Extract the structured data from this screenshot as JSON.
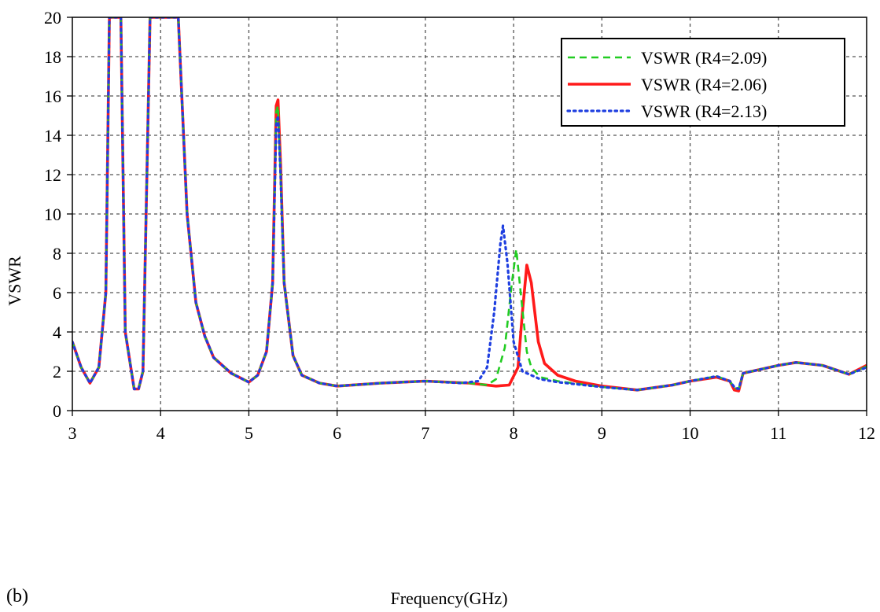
{
  "chart_data": {
    "type": "line",
    "title": "",
    "panel_label": "(b)",
    "xlabel": "Frequency(GHz)",
    "ylabel": "VSWR",
    "xlim": [
      3,
      12
    ],
    "ylim": [
      0,
      20
    ],
    "xticks": [
      3,
      4,
      5,
      6,
      7,
      8,
      9,
      10,
      11,
      12
    ],
    "yticks": [
      0,
      2,
      4,
      6,
      8,
      10,
      12,
      14,
      16,
      18,
      20
    ],
    "grid": true,
    "legend_position": "top-right",
    "series": [
      {
        "name": "VSWR (R4=2.09)",
        "color": "#22cc22",
        "style": "dashed",
        "x": [
          3.0,
          3.1,
          3.2,
          3.3,
          3.38,
          3.42,
          3.45,
          3.5,
          3.55,
          3.6,
          3.7,
          3.75,
          3.8,
          3.88,
          3.92,
          3.95,
          4.0,
          4.1,
          4.2,
          4.3,
          4.4,
          4.5,
          4.6,
          4.8,
          5.0,
          5.1,
          5.2,
          5.27,
          5.31,
          5.33,
          5.36,
          5.4,
          5.5,
          5.6,
          5.8,
          6.0,
          6.5,
          7.0,
          7.5,
          7.7,
          7.8,
          7.9,
          7.98,
          8.03,
          8.08,
          8.15,
          8.2,
          8.3,
          8.5,
          9.0,
          9.4,
          9.8,
          10.0,
          10.3,
          10.45,
          10.5,
          10.55,
          10.6,
          10.7,
          11.0,
          11.2,
          11.5,
          11.8,
          12.0
        ],
        "y": [
          3.5,
          2.2,
          1.4,
          2.2,
          6,
          20,
          20,
          20,
          20,
          4,
          1.1,
          1.1,
          2,
          20,
          20,
          20,
          20,
          20,
          20,
          10,
          5.5,
          3.8,
          2.7,
          1.9,
          1.45,
          1.8,
          3.0,
          6.5,
          15.2,
          15.5,
          12,
          6.5,
          2.8,
          1.8,
          1.4,
          1.25,
          1.4,
          1.5,
          1.4,
          1.3,
          1.6,
          3.2,
          6.5,
          8.2,
          6.0,
          3.0,
          2.2,
          1.7,
          1.5,
          1.2,
          1.05,
          1.3,
          1.5,
          1.75,
          1.5,
          1.15,
          1.1,
          1.9,
          2.0,
          2.3,
          2.45,
          2.3,
          1.85,
          2.25
        ]
      },
      {
        "name": "VSWR (R4=2.06)",
        "color": "#ff1a1a",
        "style": "solid",
        "x": [
          3.0,
          3.1,
          3.2,
          3.3,
          3.38,
          3.42,
          3.45,
          3.5,
          3.55,
          3.6,
          3.7,
          3.75,
          3.8,
          3.88,
          3.92,
          3.95,
          4.0,
          4.1,
          4.2,
          4.3,
          4.4,
          4.5,
          4.6,
          4.8,
          5.0,
          5.1,
          5.2,
          5.27,
          5.31,
          5.33,
          5.36,
          5.4,
          5.5,
          5.6,
          5.8,
          6.0,
          6.5,
          7.0,
          7.5,
          7.8,
          7.95,
          8.05,
          8.1,
          8.15,
          8.2,
          8.28,
          8.35,
          8.5,
          8.7,
          9.0,
          9.4,
          9.8,
          10.0,
          10.3,
          10.45,
          10.5,
          10.55,
          10.6,
          10.7,
          11.0,
          11.2,
          11.5,
          11.8,
          12.0
        ],
        "y": [
          3.5,
          2.2,
          1.4,
          2.2,
          6,
          20,
          20,
          20,
          20,
          4,
          1.1,
          1.1,
          2,
          20,
          20,
          20,
          20,
          20,
          20,
          10,
          5.5,
          3.8,
          2.7,
          1.9,
          1.45,
          1.8,
          3.0,
          6.5,
          15.5,
          15.8,
          12.5,
          6.5,
          2.8,
          1.8,
          1.4,
          1.25,
          1.4,
          1.5,
          1.4,
          1.25,
          1.3,
          2.2,
          5.0,
          7.4,
          6.5,
          3.5,
          2.4,
          1.8,
          1.5,
          1.25,
          1.05,
          1.3,
          1.5,
          1.7,
          1.5,
          1.05,
          1.0,
          1.9,
          2.0,
          2.3,
          2.45,
          2.3,
          1.85,
          2.3
        ]
      },
      {
        "name": "VSWR (R4=2.13)",
        "color": "#1f3fe0",
        "style": "dotted",
        "x": [
          3.0,
          3.1,
          3.2,
          3.3,
          3.38,
          3.42,
          3.45,
          3.5,
          3.55,
          3.6,
          3.7,
          3.75,
          3.8,
          3.88,
          3.92,
          3.95,
          4.0,
          4.1,
          4.2,
          4.3,
          4.4,
          4.5,
          4.6,
          4.8,
          5.0,
          5.1,
          5.2,
          5.27,
          5.31,
          5.33,
          5.36,
          5.4,
          5.5,
          5.6,
          5.8,
          6.0,
          6.5,
          7.0,
          7.4,
          7.6,
          7.7,
          7.78,
          7.85,
          7.88,
          7.93,
          8.0,
          8.1,
          8.3,
          8.5,
          9.0,
          9.4,
          9.8,
          10.0,
          10.3,
          10.45,
          10.5,
          10.55,
          10.6,
          10.7,
          11.0,
          11.2,
          11.5,
          11.8,
          12.0
        ],
        "y": [
          3.5,
          2.2,
          1.4,
          2.2,
          6,
          20,
          20,
          20,
          20,
          4,
          1.1,
          1.1,
          2,
          20,
          20,
          20,
          20,
          20,
          20,
          10,
          5.5,
          3.8,
          2.7,
          1.9,
          1.45,
          1.8,
          3.0,
          6.5,
          14.5,
          15.0,
          12,
          6.5,
          2.8,
          1.8,
          1.4,
          1.25,
          1.4,
          1.5,
          1.4,
          1.5,
          2.2,
          5.0,
          8.5,
          9.4,
          7.5,
          3.5,
          2.0,
          1.6,
          1.45,
          1.2,
          1.05,
          1.3,
          1.5,
          1.75,
          1.5,
          1.2,
          1.1,
          1.9,
          2.0,
          2.3,
          2.45,
          2.3,
          1.85,
          2.2
        ]
      }
    ]
  }
}
